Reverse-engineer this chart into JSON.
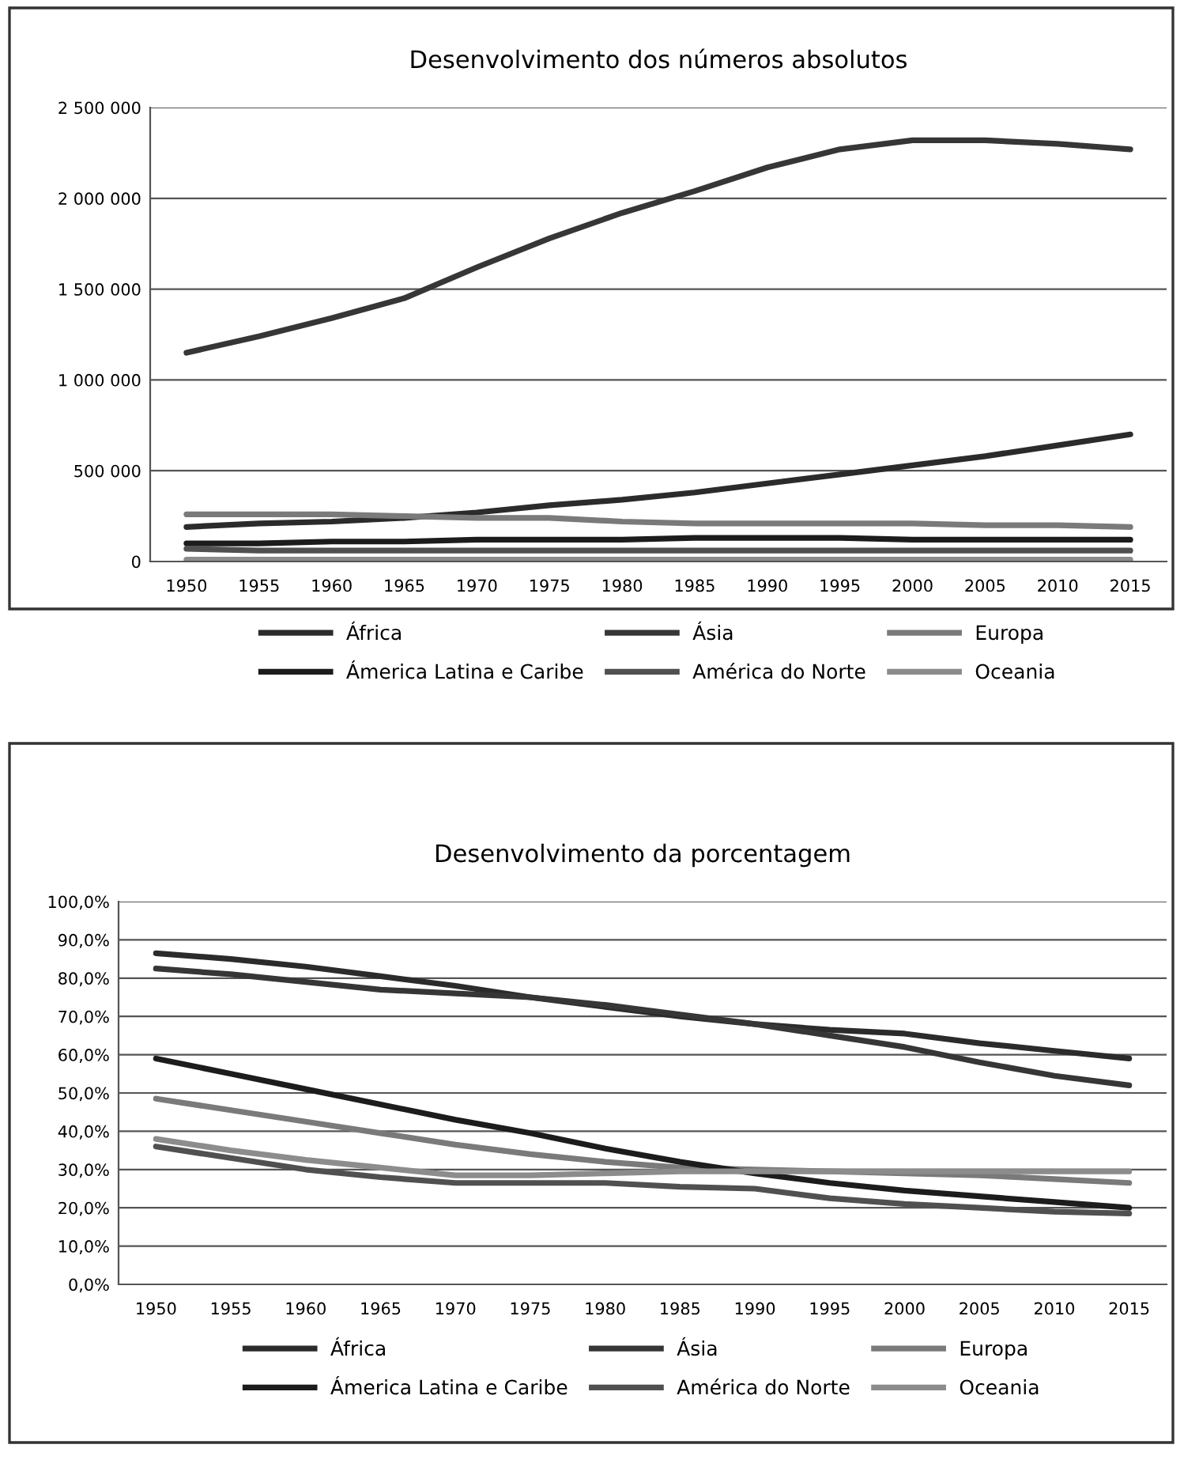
{
  "chart_data": [
    {
      "type": "line",
      "title": "Desenvolvimento dos números absolutos",
      "categories": [
        "1950",
        "1955",
        "1960",
        "1965",
        "1970",
        "1975",
        "1980",
        "1985",
        "1990",
        "1995",
        "2000",
        "2005",
        "2010",
        "2015"
      ],
      "ylim": [
        0,
        2500000
      ],
      "yticks": [
        {
          "value": 0,
          "label": "0"
        },
        {
          "value": 500000,
          "label": "500 000"
        },
        {
          "value": 1000000,
          "label": "1 000 000"
        },
        {
          "value": 1500000,
          "label": "1 500 000"
        },
        {
          "value": 2000000,
          "label": "2 000 000"
        },
        {
          "value": 2500000,
          "label": "2 500 000"
        }
      ],
      "grid": "y",
      "legend": "bottom",
      "marker": "none",
      "line_style": "solid",
      "series": [
        {
          "name": "África",
          "color": "#2b2b2b",
          "values": [
            190000,
            210000,
            220000,
            240000,
            270000,
            310000,
            340000,
            380000,
            430000,
            480000,
            530000,
            580000,
            640000,
            700000
          ]
        },
        {
          "name": "Ásia",
          "color": "#363636",
          "values": [
            1150000,
            1240000,
            1340000,
            1450000,
            1620000,
            1780000,
            1920000,
            2040000,
            2170000,
            2270000,
            2320000,
            2320000,
            2300000,
            2270000
          ]
        },
        {
          "name": "Europa",
          "color": "#7a7a7a",
          "values": [
            260000,
            260000,
            260000,
            250000,
            240000,
            240000,
            220000,
            210000,
            210000,
            210000,
            210000,
            200000,
            200000,
            190000
          ]
        },
        {
          "name": "Ámerica Latina e Caribe",
          "color": "#1c1c1c",
          "values": [
            100000,
            100000,
            110000,
            110000,
            120000,
            120000,
            120000,
            130000,
            130000,
            130000,
            120000,
            120000,
            120000,
            120000
          ]
        },
        {
          "name": "América do Norte",
          "color": "#505050",
          "values": [
            70000,
            60000,
            60000,
            60000,
            60000,
            60000,
            60000,
            60000,
            60000,
            60000,
            60000,
            60000,
            60000,
            60000
          ]
        },
        {
          "name": "Oceania",
          "color": "#8c8c8c",
          "values": [
            10000,
            10000,
            10000,
            10000,
            10000,
            10000,
            10000,
            10000,
            10000,
            10000,
            10000,
            10000,
            10000,
            10000
          ]
        }
      ]
    },
    {
      "type": "line",
      "title": "Desenvolvimento da porcentagem",
      "categories": [
        "1950",
        "1955",
        "1960",
        "1965",
        "1970",
        "1975",
        "1980",
        "1985",
        "1990",
        "1995",
        "2000",
        "2005",
        "2010",
        "2015"
      ],
      "ylim": [
        0,
        100
      ],
      "yticks": [
        {
          "value": 0,
          "label": "0,0%"
        },
        {
          "value": 10,
          "label": "10,0%"
        },
        {
          "value": 20,
          "label": "20,0%"
        },
        {
          "value": 30,
          "label": "30,0%"
        },
        {
          "value": 40,
          "label": "40,0%"
        },
        {
          "value": 50,
          "label": "50,0%"
        },
        {
          "value": 60,
          "label": "60,0%"
        },
        {
          "value": 70,
          "label": "70,0%"
        },
        {
          "value": 80,
          "label": "80,0%"
        },
        {
          "value": 90,
          "label": "90,0%"
        },
        {
          "value": 100,
          "label": "100,0%"
        }
      ],
      "grid": "y",
      "legend": "bottom",
      "marker": "none",
      "line_style": "solid",
      "series": [
        {
          "name": "África",
          "color": "#2b2b2b",
          "values": [
            86.5,
            85,
            83,
            80.5,
            78,
            75,
            72.5,
            70,
            68,
            66.5,
            65.5,
            63,
            61,
            59
          ]
        },
        {
          "name": "Ásia",
          "color": "#363636",
          "values": [
            82.5,
            81,
            79,
            77,
            76,
            75,
            73,
            70.5,
            68,
            65,
            62,
            58,
            54.5,
            52
          ]
        },
        {
          "name": "Europa",
          "color": "#7a7a7a",
          "values": [
            48.5,
            45.5,
            42.5,
            39.5,
            36.5,
            34,
            32,
            30.5,
            30,
            29.5,
            29,
            28.5,
            27.5,
            26.5
          ]
        },
        {
          "name": "Ámerica Latina e Caribe",
          "color": "#1c1c1c",
          "values": [
            59,
            55,
            51,
            47,
            43,
            39.5,
            35.5,
            32,
            29,
            26.5,
            24.5,
            23,
            21.5,
            20
          ]
        },
        {
          "name": "América do Norte",
          "color": "#505050",
          "values": [
            36,
            33,
            30,
            28,
            26.5,
            26.5,
            26.5,
            25.5,
            25,
            22.5,
            21,
            20,
            19,
            18.5
          ]
        },
        {
          "name": "Oceania",
          "color": "#8c8c8c",
          "values": [
            38,
            35,
            32.5,
            30.5,
            28.5,
            28.5,
            29,
            29.5,
            29.5,
            29.5,
            29.5,
            29.5,
            29.5,
            29.5
          ]
        }
      ]
    }
  ]
}
